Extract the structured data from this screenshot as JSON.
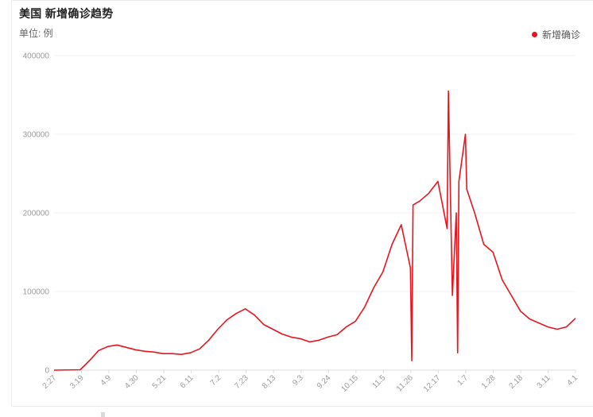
{
  "header": {
    "title": "美国 新增确诊趋势",
    "unit": "单位: 例",
    "legend_label": "新增确诊"
  },
  "colors": {
    "series": "#e8141e",
    "grid": "#f1f1f1",
    "axis": "#dddddd",
    "text": "#9a9a9a"
  },
  "chart_data": {
    "type": "line",
    "title": "美国 新增确诊趋势",
    "ylabel": "单位: 例",
    "ylim": [
      0,
      400000
    ],
    "y_ticks": [
      0,
      100000,
      200000,
      300000,
      400000
    ],
    "x_tick_labels": [
      "2.27",
      "3.19",
      "4.9",
      "4.30",
      "5.21",
      "6.11",
      "7.2",
      "7.23",
      "8.13",
      "9.3",
      "9.24",
      "10.15",
      "11.5",
      "11.26",
      "12.17",
      "1.7",
      "1.28",
      "2.18",
      "3.11",
      "4.1"
    ],
    "grid": true,
    "legend_position": "top-right",
    "series": [
      {
        "name": "新增确诊",
        "x": [
          "2.27",
          "3.19",
          "3.26",
          "4.2",
          "4.9",
          "4.16",
          "4.23",
          "4.30",
          "5.7",
          "5.14",
          "5.21",
          "5.28",
          "6.4",
          "6.11",
          "6.18",
          "6.25",
          "7.2",
          "7.9",
          "7.16",
          "7.23",
          "7.30",
          "8.6",
          "8.13",
          "8.20",
          "8.27",
          "9.3",
          "9.10",
          "9.17",
          "9.24",
          "10.1",
          "10.8",
          "10.15",
          "10.22",
          "10.29",
          "11.5",
          "11.12",
          "11.19",
          "11.26",
          "11.27",
          "11.28",
          "12.3",
          "12.10",
          "12.17",
          "12.24",
          "12.25",
          "12.28",
          "12.31",
          "1.1",
          "1.2",
          "1.7",
          "1.8",
          "1.14",
          "1.21",
          "1.28",
          "2.4",
          "2.11",
          "2.18",
          "2.25",
          "3.4",
          "3.11",
          "3.18",
          "3.25",
          "4.1"
        ],
        "values": [
          0,
          500,
          12000,
          25000,
          30000,
          32000,
          29000,
          26000,
          24000,
          23000,
          21000,
          21000,
          20000,
          22000,
          27000,
          38000,
          52000,
          64000,
          72000,
          78000,
          70000,
          58000,
          52000,
          46000,
          42000,
          40000,
          36000,
          38000,
          42000,
          45000,
          55000,
          62000,
          80000,
          105000,
          125000,
          160000,
          185000,
          130000,
          12000,
          210000,
          215000,
          225000,
          240000,
          180000,
          355000,
          95000,
          200000,
          22000,
          240000,
          300000,
          230000,
          200000,
          160000,
          150000,
          115000,
          95000,
          75000,
          65000,
          60000,
          55000,
          52000,
          55000,
          66000
        ]
      }
    ]
  }
}
